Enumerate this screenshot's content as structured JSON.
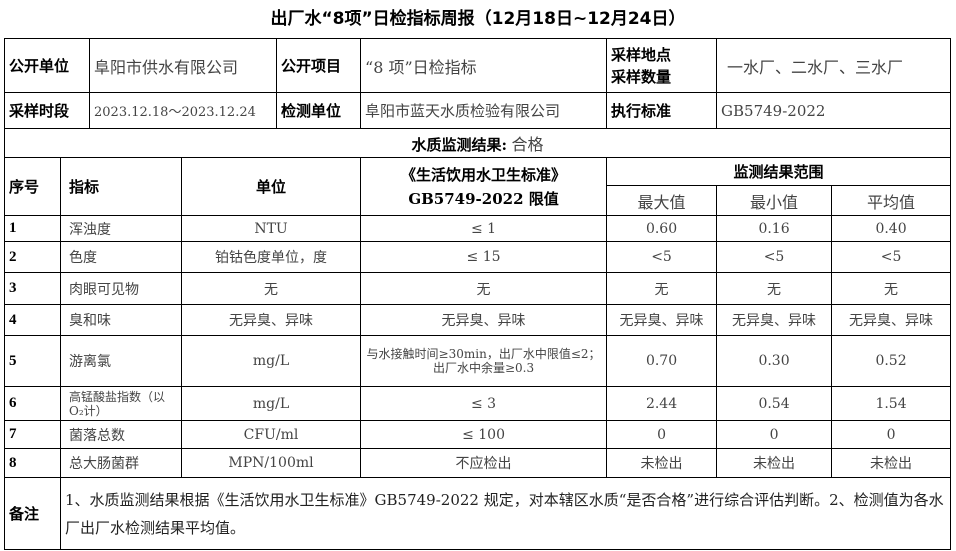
{
  "title": "出厂水“8项”日检指标周报（12月18日~12月24日）",
  "info": {
    "publisher_label": "公开单位",
    "publisher": "阜阳市供水有限公司",
    "item_label": "公开项目",
    "item": "“8 项”日检指标",
    "site_label": "采样地点\n采样数量",
    "site_label_1": "采样地点",
    "site_label_2": "采样数量",
    "site": "一水厂、二水厂、三水厂",
    "period_label": "采样时段",
    "period": "2023.12.18～2023.12.24",
    "lab_label": "检测单位",
    "lab": "阜阳市蓝天水质检验有限公司",
    "standard_label": "执行标准",
    "standard": "GB5749-2022"
  },
  "result_line": {
    "label": "水质监测结果:",
    "value": "合格"
  },
  "headers": {
    "no": "序号",
    "indicator": "指标",
    "unit": "单位",
    "limit_1": "《生活饮用水卫生标准》",
    "limit_2": "GB5749-2022 限值",
    "range": "监测结果范围",
    "max": "最大值",
    "min": "最小值",
    "avg": "平均值"
  },
  "rows": [
    {
      "no": "1",
      "indicator": "浑浊度",
      "unit": "NTU",
      "limit": "≤ 1",
      "max": "0.60",
      "min": "0.16",
      "avg": "0.40"
    },
    {
      "no": "2",
      "indicator": "色度",
      "unit": "铂钴色度单位，度",
      "limit": "≤ 15",
      "max": "<5",
      "min": "<5",
      "avg": "<5"
    },
    {
      "no": "3",
      "indicator": "肉眼可见物",
      "unit": "无",
      "limit": "无",
      "max": "无",
      "min": "无",
      "avg": "无"
    },
    {
      "no": "4",
      "indicator": "臭和味",
      "unit": "无异臭、异味",
      "limit": "无异臭、异味",
      "max": "无异臭、异味",
      "min": "无异臭、异味",
      "avg": "无异臭、异味"
    },
    {
      "no": "5",
      "indicator": "游离氯",
      "unit": "mg/L",
      "limit": "与水接触时间≥30min，出厂水中限值≤2；出厂水中余量≥0.3",
      "max": "0.70",
      "min": "0.30",
      "avg": "0.52"
    },
    {
      "no": "6",
      "indicator": "高锰酸盐指数（以O₂计）",
      "unit": "mg/L",
      "limit": "≤ 3",
      "max": "2.44",
      "min": "0.54",
      "avg": "1.54"
    },
    {
      "no": "7",
      "indicator": "菌落总数",
      "unit": "CFU/ml",
      "limit": "≤ 100",
      "max": "0",
      "min": "0",
      "avg": "0"
    },
    {
      "no": "8",
      "indicator": "总大肠菌群",
      "unit": "MPN/100ml",
      "limit": "不应检出",
      "max": "未检出",
      "min": "未检出",
      "avg": "未检出"
    }
  ],
  "notes": {
    "label": "备注",
    "text": "1、水质监测结果根据《生活饮用水卫生标准》GB5749-2022 规定，对本辖区水质“是否合格”进行综合评估判断。2、检测值为各水厂出厂水检测结果平均值。"
  }
}
